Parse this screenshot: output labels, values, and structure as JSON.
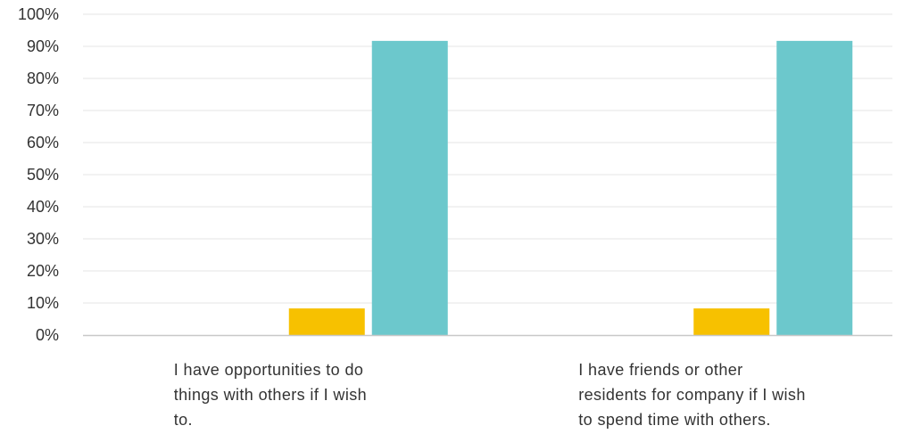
{
  "chart_data": {
    "type": "bar",
    "title": "",
    "xlabel": "",
    "ylabel": "",
    "ylim": [
      0,
      100
    ],
    "y_ticks": [
      "0%",
      "10%",
      "20%",
      "30%",
      "40%",
      "50%",
      "60%",
      "70%",
      "80%",
      "90%",
      "100%"
    ],
    "grid": true,
    "legend": "none",
    "categories": [
      [
        "I have opportunities to do",
        "things with others if I wish",
        "to."
      ],
      [
        "I have friends or other",
        "residents for company if I wish",
        "to spend time with others."
      ]
    ],
    "series": [
      {
        "color": "#d1447b",
        "values": [
          0,
          0
        ]
      },
      {
        "color": "#f2aa3a",
        "values": [
          0,
          0
        ]
      },
      {
        "color": "#f7c100",
        "values": [
          8.3,
          8.3
        ]
      },
      {
        "color": "#6cc8cc",
        "values": [
          91.7,
          91.7
        ]
      }
    ]
  }
}
